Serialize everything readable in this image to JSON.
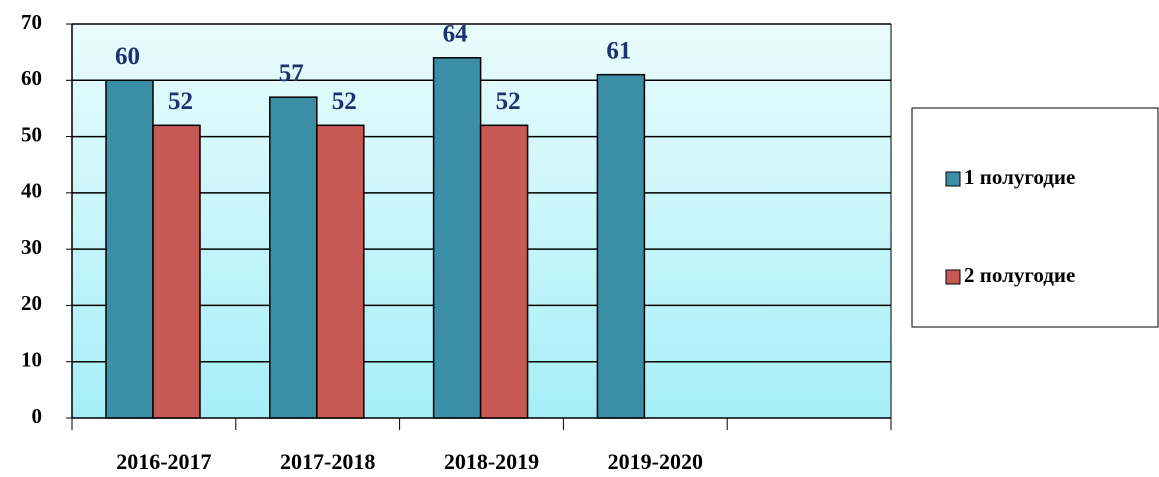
{
  "chart_data": {
    "type": "bar",
    "categories": [
      "2016-2017",
      "2017-2018",
      "2018-2019",
      "2019-2020",
      null
    ],
    "series": [
      {
        "name": "1 полугодие",
        "color": "#3a8ea6",
        "values": [
          60,
          57,
          64,
          61,
          null
        ]
      },
      {
        "name": "2 полугодие",
        "color": "#c65953",
        "values": [
          52,
          52,
          52,
          null,
          null
        ]
      }
    ],
    "ylim": [
      0,
      70
    ],
    "yticks": [
      0,
      10,
      20,
      30,
      40,
      50,
      60,
      70
    ],
    "grid": true,
    "legend": "right"
  }
}
